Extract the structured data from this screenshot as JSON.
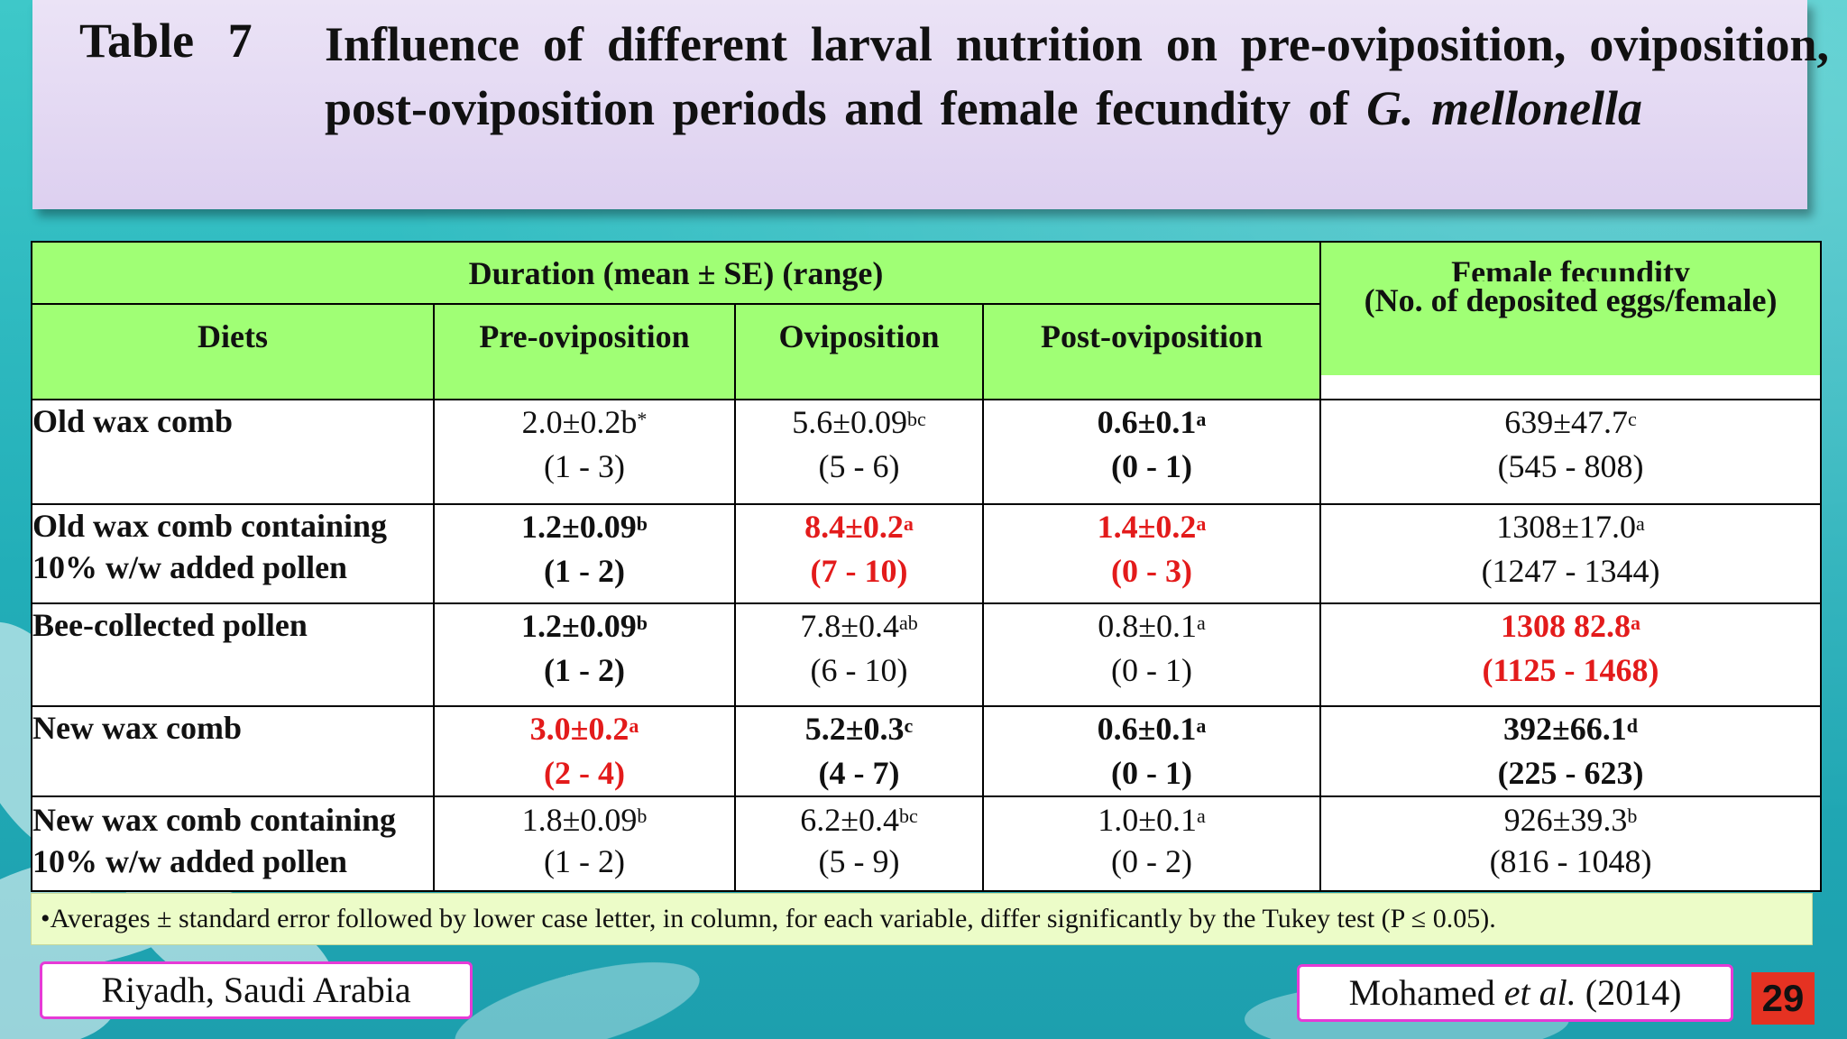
{
  "slide": {
    "title_label": "Table 7",
    "title_main": "Influence of different larval nutrition on pre-oviposition, oviposition, post-oviposition periods and female fecundity of",
    "title_species": "G. mellonella"
  },
  "table": {
    "header_duration": "Duration (mean ± SE) (range)",
    "header_fecundity_line1": "Female fecundity",
    "header_fecundity_line2": "(No. of deposited eggs/female)",
    "header_diets": "Diets",
    "header_pre": "Pre-oviposition",
    "header_ovi": "Oviposition",
    "header_post": "Post-oviposition",
    "rows": [
      {
        "diet_l1": "Old wax comb",
        "pre": "2.0±0.2b",
        "pre_sup": "*",
        "pre_range": "(1 - 3)",
        "ovi": "5.6±0.09",
        "ovi_sup": "bc",
        "ovi_range": "(5 - 6)",
        "post": "0.6±0.1",
        "post_sup": "a",
        "post_range": "(0 - 1)",
        "fec": "639±47.7",
        "fec_sup": "c",
        "fec_range": "(545 - 808)"
      },
      {
        "diet_l1": "Old wax comb containing",
        "diet_l2": "10% w/w added pollen",
        "pre": "1.2±0.09",
        "pre_sup": "b",
        "pre_range": "(1 - 2)",
        "ovi": "8.4±0.2",
        "ovi_sup": "a",
        "ovi_range": "(7 - 10)",
        "post": "1.4±0.2",
        "post_sup": "a",
        "post_range": "(0 - 3)",
        "fec": "1308±17.0",
        "fec_sup": "a",
        "fec_range": "(1247 - 1344)"
      },
      {
        "diet_l1": "Bee-collected pollen",
        "pre": "1.2±0.09",
        "pre_sup": "b",
        "pre_range": "(1 - 2)",
        "ovi": "7.8±0.4",
        "ovi_sup": "ab",
        "ovi_range": "(6 - 10)",
        "post": "0.8±0.1",
        "post_sup": "a",
        "post_range": "(0 - 1)",
        "fec": "1308 82.8",
        "fec_sup": "a",
        "fec_range": "(1125 - 1468)"
      },
      {
        "diet_l1": "New wax comb",
        "pre": "3.0±0.2",
        "pre_sup": "a",
        "pre_range": "(2 - 4)",
        "ovi": "5.2±0.3",
        "ovi_sup": "c",
        "ovi_range": "(4 - 7)",
        "post": "0.6±0.1",
        "post_sup": "a",
        "post_range": "(0 - 1)",
        "fec": "392±66.1",
        "fec_sup": "d",
        "fec_range": "(225 - 623)"
      },
      {
        "diet_l1": "New wax comb containing",
        "diet_l2": "10% w/w added pollen",
        "pre": "1.8±0.09",
        "pre_sup": "b",
        "pre_range": "(1 - 2)",
        "ovi": "6.2±0.4",
        "ovi_sup": "bc",
        "ovi_range": "(5 - 9)",
        "post": "1.0±0.1",
        "post_sup": "a",
        "post_range": "(0 - 2)",
        "fec": "926±39.3",
        "fec_sup": "b",
        "fec_range": "(816 - 1048)"
      }
    ]
  },
  "footnote": "•Averages ± standard error followed by lower case letter, in column, for each variable, differ significantly by the Tukey test (P ≤ 0.05).",
  "location": "Riyadh, Saudi Arabia",
  "citation": {
    "author": "Mohamed",
    "etal": "et al.",
    "year": "(2014)"
  },
  "page_number": "29",
  "colors": {
    "header_green": "#a0ff75",
    "highlight_red": "#e31b1b",
    "accent_magenta": "#e63ad6",
    "page_badge": "#e53222"
  }
}
